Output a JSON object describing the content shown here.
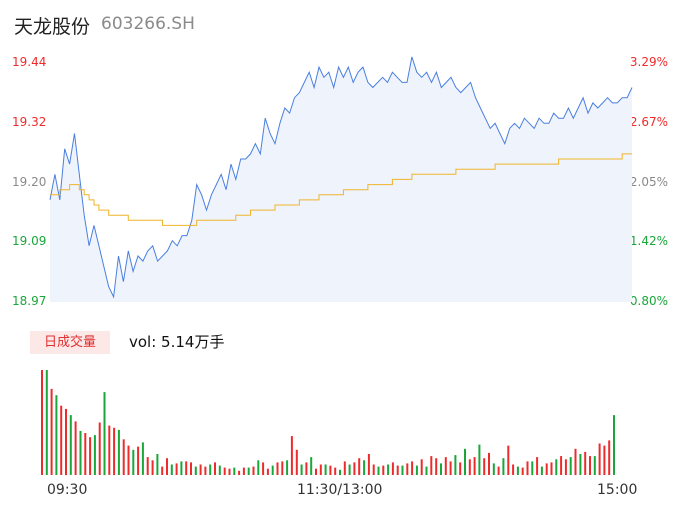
{
  "header": {
    "name": "天龙股份",
    "code": "603266.SH"
  },
  "volume_panel": {
    "badge": "日成交量",
    "vol_text": "vol: 5.14万手"
  },
  "chart_data": {
    "type": "line",
    "title": "天龙股份 603266.SH",
    "y_labels_left": [
      "19.44",
      "19.32",
      "19.20",
      "19.09",
      "18.97"
    ],
    "y_labels_right": [
      "3.29%",
      "2.67%",
      "2.05%",
      "1.42%",
      "0.80%"
    ],
    "x_labels": [
      "09:30",
      "11:30/13:00",
      "15:00"
    ],
    "ylim": [
      18.97,
      19.44
    ],
    "colors": {
      "price": "#4a7fe0",
      "avg": "#f0b429",
      "up": "#ee2b2b",
      "down": "#1aa63a",
      "grid_text": "#8a8a8a"
    },
    "series": [
      {
        "values": [
          19.17,
          19.22,
          19.17,
          19.27,
          19.24,
          19.3,
          19.22,
          19.14,
          19.08,
          19.12,
          19.08,
          19.04,
          19.0,
          18.98,
          19.06,
          19.01,
          19.07,
          19.03,
          19.06,
          19.05,
          19.07,
          19.08,
          19.05,
          19.06,
          19.07,
          19.09,
          19.08,
          19.1,
          19.1,
          19.13,
          19.2,
          19.18,
          19.15,
          19.18,
          19.2,
          19.22,
          19.19,
          19.24,
          19.21,
          19.25,
          19.25,
          19.26,
          19.28,
          19.26,
          19.33,
          19.3,
          19.28,
          19.32,
          19.35,
          19.34,
          19.37,
          19.38,
          19.4,
          19.42,
          19.39,
          19.43,
          19.41,
          19.42,
          19.39,
          19.43,
          19.41,
          19.43,
          19.4,
          19.42,
          19.43,
          19.4,
          19.39,
          19.4,
          19.41,
          19.4,
          19.42,
          19.41,
          19.4,
          19.4,
          19.45,
          19.42,
          19.41,
          19.42,
          19.4,
          19.42,
          19.39,
          19.4,
          19.41,
          19.39,
          19.38,
          19.39,
          19.4,
          19.37,
          19.35,
          19.33,
          19.31,
          19.32,
          19.3,
          19.28,
          19.31,
          19.32,
          19.31,
          19.33,
          19.32,
          19.31,
          19.33,
          19.32,
          19.32,
          19.34,
          19.33,
          19.33,
          19.35,
          19.33,
          19.35,
          19.37,
          19.34,
          19.36,
          19.35,
          19.36,
          19.37,
          19.36,
          19.36,
          19.37,
          19.37,
          19.39
        ],
        "color": "#4a7fe0"
      },
      {
        "values": [
          19.18,
          19.18,
          19.19,
          19.19,
          19.2,
          19.2,
          19.19,
          19.18,
          19.17,
          19.16,
          19.15,
          19.15,
          19.14,
          19.14,
          19.14,
          19.14,
          19.13,
          19.13,
          19.13,
          19.13,
          19.13,
          19.13,
          19.13,
          19.12,
          19.12,
          19.12,
          19.12,
          19.12,
          19.12,
          19.12,
          19.13,
          19.13,
          19.13,
          19.13,
          19.13,
          19.13,
          19.13,
          19.13,
          19.14,
          19.14,
          19.14,
          19.15,
          19.15,
          19.15,
          19.15,
          19.15,
          19.16,
          19.16,
          19.16,
          19.16,
          19.16,
          19.17,
          19.17,
          19.17,
          19.17,
          19.18,
          19.18,
          19.18,
          19.18,
          19.18,
          19.19,
          19.19,
          19.19,
          19.19,
          19.19,
          19.2,
          19.2,
          19.2,
          19.2,
          19.2,
          19.21,
          19.21,
          19.21,
          19.21,
          19.22,
          19.22,
          19.22,
          19.22,
          19.22,
          19.22,
          19.22,
          19.22,
          19.22,
          19.23,
          19.23,
          19.23,
          19.23,
          19.23,
          19.23,
          19.23,
          19.23,
          19.24,
          19.24,
          19.24,
          19.24,
          19.24,
          19.24,
          19.24,
          19.24,
          19.24,
          19.24,
          19.24,
          19.24,
          19.24,
          19.25,
          19.25,
          19.25,
          19.25,
          19.25,
          19.25,
          19.25,
          19.25,
          19.25,
          19.25,
          19.25,
          19.25,
          19.25,
          19.26,
          19.26,
          19.26
        ],
        "color": "#f0b429"
      }
    ],
    "volume": {
      "values": [
        100,
        100,
        82,
        76,
        66,
        63,
        57,
        51,
        42,
        40,
        36,
        38,
        50,
        79,
        47,
        45,
        43,
        34,
        28,
        24,
        27,
        31,
        17,
        14,
        20,
        8,
        16,
        10,
        11,
        13,
        13,
        12,
        8,
        10,
        8,
        10,
        12,
        9,
        7,
        6,
        7,
        4,
        7,
        7,
        8,
        14,
        12,
        6,
        9,
        12,
        13,
        14,
        37,
        24,
        10,
        12,
        17,
        6,
        10,
        10,
        9,
        7,
        5,
        13,
        10,
        12,
        16,
        14,
        20,
        10,
        8,
        9,
        10,
        12,
        9,
        9,
        11,
        13,
        9,
        15,
        8,
        18,
        16,
        11,
        17,
        13,
        19,
        12,
        25,
        15,
        17,
        29,
        16,
        21,
        11,
        8,
        16,
        28,
        10,
        8,
        7,
        13,
        13,
        17,
        8,
        11,
        12,
        15,
        18,
        15,
        17,
        25,
        20,
        22,
        18,
        18,
        30,
        28,
        33,
        57
      ],
      "up": [
        true,
        false,
        true,
        false,
        true,
        true,
        false,
        true,
        false,
        true,
        true,
        false,
        true,
        false,
        true,
        true,
        false,
        true,
        true,
        false,
        true,
        false,
        true,
        true,
        false,
        true,
        true,
        false,
        true,
        false,
        true,
        true,
        false,
        true,
        true,
        false,
        true,
        false,
        true,
        true,
        false,
        true,
        true,
        false,
        true,
        false,
        true,
        true,
        false,
        true,
        true,
        false,
        true,
        true,
        false,
        true,
        false,
        true,
        true,
        false,
        true,
        true,
        false,
        true,
        false,
        true,
        true,
        false,
        true,
        true,
        false,
        true,
        false,
        true,
        true,
        false,
        true,
        true,
        false,
        true,
        false,
        true,
        true,
        false,
        true,
        true,
        false,
        true,
        false,
        true,
        true,
        false,
        true,
        true,
        false,
        true,
        false,
        true,
        true,
        false,
        true,
        true,
        false,
        true,
        false,
        true,
        true,
        false,
        true,
        true,
        false,
        true,
        false,
        true,
        true,
        false,
        true,
        true,
        true,
        false
      ]
    }
  }
}
